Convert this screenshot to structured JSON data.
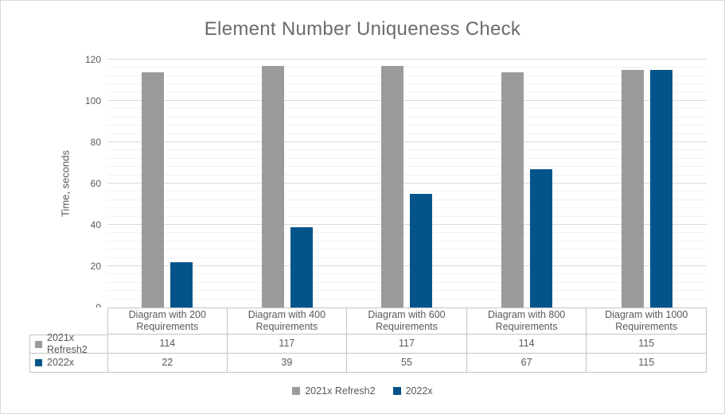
{
  "chart_data": {
    "type": "bar",
    "title": "Element Number Uniqueness Check",
    "xlabel": "",
    "ylabel": "Time, seconds",
    "ylim": [
      0,
      120
    ],
    "y_major_step": 20,
    "y_minor_step": 4,
    "grid": "horizontal major and minor gridlines",
    "legend_position": "bottom",
    "data_table_shown": true,
    "categories": [
      "Diagram with 200 Requirements",
      "Diagram with 400 Requirements",
      "Diagram with 600 Requirements",
      "Diagram with 800 Requirements",
      "Diagram with 1000 Requirements"
    ],
    "series": [
      {
        "name": "2021x Refresh2",
        "color": "#9b9b9b",
        "values": [
          114,
          117,
          117,
          114,
          115
        ]
      },
      {
        "name": "2022x",
        "color": "#03548a",
        "values": [
          22,
          39,
          55,
          67,
          115
        ]
      }
    ]
  }
}
